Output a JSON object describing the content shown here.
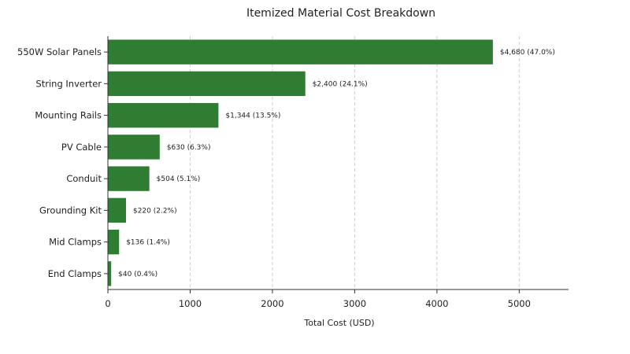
{
  "chart_data": {
    "type": "bar",
    "orientation": "horizontal",
    "title": "Itemized Material Cost Breakdown",
    "xlabel": "Total Cost (USD)",
    "ylabel": "",
    "xlim": [
      0,
      5600
    ],
    "xticks": [
      0,
      1000,
      2000,
      3000,
      4000,
      5000
    ],
    "grid": "vertical-dashed",
    "bar_color": "#2e7d32",
    "categories": [
      "550W Solar Panels",
      "String Inverter",
      "Mounting Rails",
      "PV Cable",
      "Conduit",
      "Grounding Kit",
      "Mid Clamps",
      "End Clamps"
    ],
    "values": [
      4680,
      2400,
      1344,
      630,
      504,
      220,
      136,
      40
    ],
    "data_labels": [
      "$4,680 (47.0%)",
      "$2,400 (24.1%)",
      "$1,344 (13.5%)",
      "$630 (6.3%)",
      "$504 (5.1%)",
      "$220 (2.2%)",
      "$136 (1.4%)",
      "$40 (0.4%)"
    ]
  }
}
